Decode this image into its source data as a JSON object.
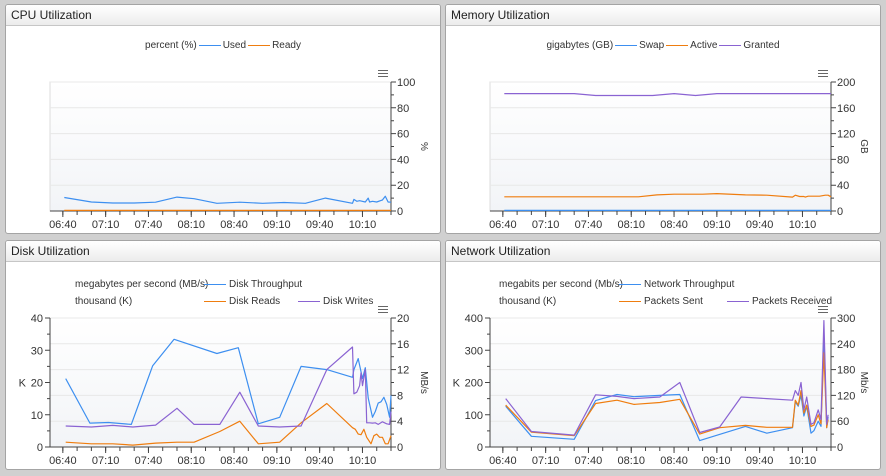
{
  "chart_data": [
    {
      "type": "line",
      "title": "CPU Utilization",
      "legend_style": "center",
      "legend": [
        {
          "unit": "percent (%)",
          "items": [
            0,
            1
          ]
        }
      ],
      "x_range": [
        "06:31",
        "10:30"
      ],
      "x_ticks": [
        "06:40",
        "07:10",
        "07:40",
        "08:10",
        "08:40",
        "09:10",
        "09:40",
        "10:10"
      ],
      "y_right": {
        "label": "%",
        "range": [
          0,
          100
        ],
        "ticks": [
          "0",
          "20",
          "40",
          "60",
          "80",
          "100"
        ]
      },
      "grid": true,
      "series": [
        {
          "name": "Used",
          "color": "#3d8ff0",
          "axis": "right",
          "points": [
            [
              "06:41",
              10.5
            ],
            [
              "07:00",
              7
            ],
            [
              "07:15",
              6.2
            ],
            [
              "07:30",
              6.2
            ],
            [
              "07:45",
              6.8
            ],
            [
              "08:00",
              10.8
            ],
            [
              "08:12",
              9.5
            ],
            [
              "08:28",
              6
            ],
            [
              "08:44",
              6.8
            ],
            [
              "09:00",
              6
            ],
            [
              "09:15",
              6.6
            ],
            [
              "09:30",
              6
            ],
            [
              "09:44",
              10
            ],
            [
              "10:03",
              6
            ],
            [
              "10:04",
              9
            ],
            [
              "10:06",
              7.5
            ],
            [
              "10:08",
              8
            ],
            [
              "10:12",
              7
            ],
            [
              "10:14",
              10
            ],
            [
              "10:15",
              7
            ],
            [
              "10:17",
              7.5
            ],
            [
              "10:20",
              7
            ],
            [
              "10:24",
              8.5
            ],
            [
              "10:26",
              11.5
            ],
            [
              "10:28",
              7
            ],
            [
              "10:30",
              6.8
            ]
          ]
        },
        {
          "name": "Ready",
          "color": "#ef7d0f",
          "axis": "right",
          "points": [
            [
              "06:41",
              0.5
            ],
            [
              "10:30",
              0.5
            ]
          ]
        }
      ]
    },
    {
      "type": "line",
      "title": "Memory Utilization",
      "legend_style": "center",
      "legend": [
        {
          "unit": "gigabytes (GB)",
          "items": [
            0,
            1,
            2
          ]
        }
      ],
      "x_range": [
        "06:31",
        "10:30"
      ],
      "x_ticks": [
        "06:40",
        "07:10",
        "07:40",
        "08:10",
        "08:40",
        "09:10",
        "09:40",
        "10:10"
      ],
      "y_right": {
        "label": "GB",
        "range": [
          0,
          200
        ],
        "ticks": [
          "0",
          "40",
          "80",
          "120",
          "160",
          "200"
        ]
      },
      "grid": true,
      "series": [
        {
          "name": "Swap",
          "color": "#3d8ff0",
          "axis": "right",
          "points": [
            [
              "06:41",
              1
            ],
            [
              "10:30",
              1
            ]
          ]
        },
        {
          "name": "Active",
          "color": "#ef7d0f",
          "axis": "right",
          "points": [
            [
              "06:41",
              22
            ],
            [
              "08:15",
              22
            ],
            [
              "08:28",
              25
            ],
            [
              "08:40",
              26
            ],
            [
              "09:00",
              26
            ],
            [
              "09:10",
              27
            ],
            [
              "09:30",
              25
            ],
            [
              "09:45",
              24.5
            ],
            [
              "10:03",
              21.5
            ],
            [
              "10:05",
              24.5
            ],
            [
              "10:08",
              22.5
            ],
            [
              "10:11",
              22.5
            ],
            [
              "10:12",
              21.5
            ],
            [
              "10:14",
              23
            ],
            [
              "10:22",
              23
            ],
            [
              "10:26",
              24.5
            ],
            [
              "10:28",
              24.5
            ],
            [
              "10:30",
              22
            ]
          ]
        },
        {
          "name": "Granted",
          "color": "#8a63d2",
          "axis": "right",
          "points": [
            [
              "06:41",
              182
            ],
            [
              "07:30",
              182
            ],
            [
              "07:45",
              179
            ],
            [
              "08:25",
              179
            ],
            [
              "08:40",
              182
            ],
            [
              "08:55",
              179
            ],
            [
              "09:10",
              182
            ],
            [
              "10:30",
              182
            ]
          ]
        }
      ]
    },
    {
      "type": "line",
      "title": "Disk Utilization",
      "legend_style": "rows",
      "legend": [
        {
          "unit": "megabytes per second (MB/s)",
          "items": [
            0
          ]
        },
        {
          "unit": "thousand (K)",
          "items": [
            1,
            2
          ]
        }
      ],
      "x_range": [
        "06:31",
        "10:30"
      ],
      "x_ticks": [
        "06:40",
        "07:10",
        "07:40",
        "08:10",
        "08:40",
        "09:10",
        "09:40",
        "10:10"
      ],
      "y_left": {
        "label": "K",
        "range": [
          0,
          40
        ],
        "ticks": [
          "0",
          "10",
          "20",
          "30",
          "40"
        ]
      },
      "y_right": {
        "label": "MB/s",
        "range": [
          0,
          20
        ],
        "ticks": [
          "0",
          "4",
          "8",
          "12",
          "16",
          "20"
        ]
      },
      "grid": true,
      "series": [
        {
          "name": "Disk Throughput",
          "color": "#3d8ff0",
          "axis": "right",
          "points": [
            [
              "06:42",
              10.6
            ],
            [
              "06:59",
              3.7
            ],
            [
              "07:12",
              3.8
            ],
            [
              "07:28",
              3.5
            ],
            [
              "07:43",
              12.6
            ],
            [
              "07:58",
              16.7
            ],
            [
              "08:28",
              14.5
            ],
            [
              "08:43",
              15.4
            ],
            [
              "08:57",
              3.6
            ],
            [
              "09:12",
              4.6
            ],
            [
              "09:27",
              12.5
            ],
            [
              "09:45",
              12
            ],
            [
              "10:03",
              10.8
            ],
            [
              "10:04",
              12
            ],
            [
              "10:07",
              13.7
            ],
            [
              "10:10",
              10.6
            ],
            [
              "10:12",
              12.3
            ],
            [
              "10:14",
              7.6
            ],
            [
              "10:17",
              4.6
            ],
            [
              "10:19",
              5.5
            ],
            [
              "10:21",
              6.8
            ],
            [
              "10:23",
              7
            ],
            [
              "10:25",
              7.7
            ],
            [
              "10:27",
              6.6
            ],
            [
              "10:29",
              4.6
            ],
            [
              "10:30",
              8
            ]
          ]
        },
        {
          "name": "Disk Reads",
          "color": "#ef7d0f",
          "axis": "left",
          "points": [
            [
              "06:42",
              1.5
            ],
            [
              "07:00",
              1
            ],
            [
              "07:15",
              1
            ],
            [
              "07:29",
              0.6
            ],
            [
              "07:45",
              1.2
            ],
            [
              "08:00",
              1.5
            ],
            [
              "08:12",
              1.5
            ],
            [
              "08:30",
              4.8
            ],
            [
              "08:44",
              8
            ],
            [
              "08:57",
              1
            ],
            [
              "09:12",
              1.5
            ],
            [
              "09:27",
              7.5
            ],
            [
              "09:45",
              13.5
            ],
            [
              "10:03",
              6
            ],
            [
              "10:05",
              5.5
            ],
            [
              "10:07",
              4
            ],
            [
              "10:09",
              3.8
            ],
            [
              "10:11",
              5.5
            ],
            [
              "10:13",
              3
            ],
            [
              "10:16",
              1
            ],
            [
              "10:18",
              3.5
            ],
            [
              "10:20",
              4
            ],
            [
              "10:22",
              3
            ],
            [
              "10:24",
              3
            ],
            [
              "10:26",
              1
            ],
            [
              "10:28",
              1
            ],
            [
              "10:30",
              3.5
            ]
          ]
        },
        {
          "name": "Disk Writes",
          "color": "#8a63d2",
          "axis": "left",
          "points": [
            [
              "06:42",
              6.5
            ],
            [
              "07:00",
              6.2
            ],
            [
              "07:15",
              6.7
            ],
            [
              "07:29",
              6.2
            ],
            [
              "07:45",
              6.8
            ],
            [
              "08:00",
              12
            ],
            [
              "08:12",
              7
            ],
            [
              "08:30",
              7
            ],
            [
              "08:44",
              17
            ],
            [
              "08:57",
              6.5
            ],
            [
              "09:12",
              6.2
            ],
            [
              "09:27",
              6.5
            ],
            [
              "09:45",
              24
            ],
            [
              "10:03",
              31
            ],
            [
              "10:04",
              16.5
            ],
            [
              "10:06",
              17
            ],
            [
              "10:08",
              19
            ],
            [
              "10:09",
              23
            ],
            [
              "10:10",
              19
            ],
            [
              "10:12",
              24
            ],
            [
              "10:13",
              7.5
            ],
            [
              "10:15",
              7.5
            ],
            [
              "10:17",
              7.4
            ],
            [
              "10:19",
              7.5
            ],
            [
              "10:21",
              7
            ],
            [
              "10:24",
              7.8
            ],
            [
              "10:27",
              7.2
            ],
            [
              "10:29",
              7
            ],
            [
              "10:30",
              11
            ]
          ]
        }
      ]
    },
    {
      "type": "line",
      "title": "Network Utilization",
      "legend_style": "rows",
      "legend": [
        {
          "unit": "megabits per second (Mb/s)",
          "items": [
            0
          ]
        },
        {
          "unit": "thousand (K)",
          "items": [
            1,
            2
          ]
        }
      ],
      "x_range": [
        "06:31",
        "10:30"
      ],
      "x_ticks": [
        "06:40",
        "07:10",
        "07:40",
        "08:10",
        "08:40",
        "09:10",
        "09:40",
        "10:10"
      ],
      "y_left": {
        "label": "K",
        "range": [
          0,
          400
        ],
        "ticks": [
          "0",
          "100",
          "200",
          "300",
          "400"
        ]
      },
      "y_right": {
        "label": "Mb/s",
        "range": [
          0,
          300
        ],
        "ticks": [
          "0",
          "60",
          "120",
          "180",
          "240",
          "300"
        ]
      },
      "grid": true,
      "series": [
        {
          "name": "Network Throughput",
          "color": "#3d8ff0",
          "axis": "right",
          "points": [
            [
              "06:42",
              95
            ],
            [
              "07:00",
              25
            ],
            [
              "07:30",
              18
            ],
            [
              "07:45",
              108
            ],
            [
              "08:00",
              122
            ],
            [
              "08:12",
              117
            ],
            [
              "08:30",
              120
            ],
            [
              "08:44",
              122
            ],
            [
              "08:58",
              15
            ],
            [
              "09:30",
              48
            ],
            [
              "09:45",
              32
            ],
            [
              "10:03",
              45
            ],
            [
              "10:05",
              105
            ],
            [
              "10:07",
              95
            ],
            [
              "10:09",
              120
            ],
            [
              "10:11",
              72
            ],
            [
              "10:13",
              95
            ],
            [
              "10:16",
              32
            ],
            [
              "10:18",
              38
            ],
            [
              "10:21",
              60
            ],
            [
              "10:23",
              48
            ],
            [
              "10:25",
              260
            ],
            [
              "10:27",
              45
            ],
            [
              "10:28",
              70
            ]
          ]
        },
        {
          "name": "Packets Sent",
          "color": "#ef7d0f",
          "axis": "left",
          "points": [
            [
              "06:42",
              130
            ],
            [
              "07:00",
              46
            ],
            [
              "07:30",
              35
            ],
            [
              "07:45",
              135
            ],
            [
              "08:00",
              145
            ],
            [
              "08:12",
              132
            ],
            [
              "08:30",
              138
            ],
            [
              "08:44",
              148
            ],
            [
              "08:58",
              40
            ],
            [
              "09:12",
              60
            ],
            [
              "09:30",
              67
            ],
            [
              "09:45",
              61
            ],
            [
              "10:03",
              61
            ],
            [
              "10:05",
              145
            ],
            [
              "10:07",
              130
            ],
            [
              "10:09",
              175
            ],
            [
              "10:11",
              105
            ],
            [
              "10:13",
              130
            ],
            [
              "10:16",
              64
            ],
            [
              "10:18",
              68
            ],
            [
              "10:21",
              100
            ],
            [
              "10:23",
              72
            ],
            [
              "10:25",
              292
            ],
            [
              "10:27",
              60
            ],
            [
              "10:28",
              85
            ]
          ]
        },
        {
          "name": "Packets Received",
          "color": "#8a63d2",
          "axis": "left",
          "points": [
            [
              "06:42",
              150
            ],
            [
              "07:00",
              48
            ],
            [
              "07:30",
              37
            ],
            [
              "07:45",
              162
            ],
            [
              "08:00",
              157
            ],
            [
              "08:12",
              150
            ],
            [
              "08:30",
              155
            ],
            [
              "08:44",
              200
            ],
            [
              "08:58",
              45
            ],
            [
              "09:12",
              62
            ],
            [
              "09:27",
              155
            ],
            [
              "09:45",
              150
            ],
            [
              "10:03",
              145
            ],
            [
              "10:05",
              175
            ],
            [
              "10:07",
              160
            ],
            [
              "10:09",
              200
            ],
            [
              "10:11",
              115
            ],
            [
              "10:13",
              155
            ],
            [
              "10:16",
              70
            ],
            [
              "10:18",
              75
            ],
            [
              "10:21",
              115
            ],
            [
              "10:23",
              85
            ],
            [
              "10:25",
              392
            ],
            [
              "10:27",
              70
            ],
            [
              "10:28",
              100
            ]
          ]
        }
      ]
    }
  ]
}
